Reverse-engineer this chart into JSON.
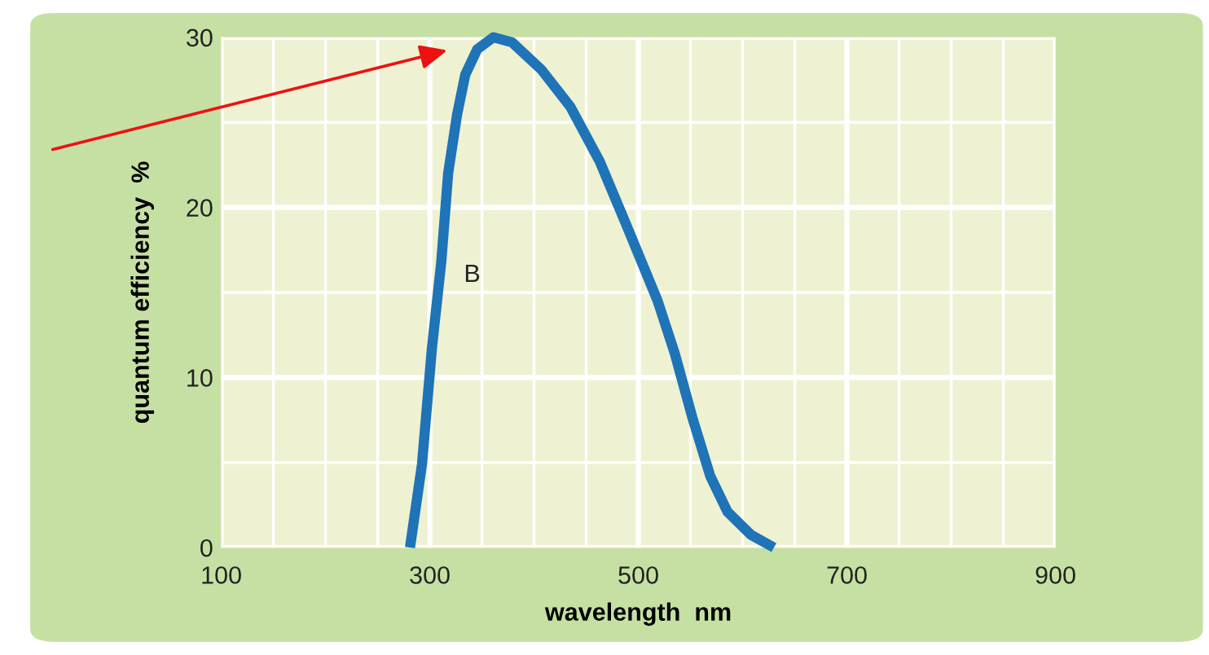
{
  "chart_data": {
    "type": "line",
    "xlabel": "wavelength  nm",
    "ylabel": "quantum efficiency  %",
    "x": [
      281,
      292.5,
      302,
      311,
      317.6,
      326,
      334,
      345.5,
      361,
      379,
      407,
      435,
      463,
      491,
      518.5,
      535,
      552,
      569,
      585.5,
      608,
      630
    ],
    "series": [
      {
        "name": "B",
        "color": "#1f73b7",
        "values": [
          0,
          4.9,
          11.7,
          16.8,
          22,
          25.4,
          27.8,
          29.3,
          30,
          29.7,
          28.1,
          25.9,
          22.7,
          18.6,
          14.5,
          11.4,
          7.6,
          4.2,
          2.1,
          0.75,
          0
        ]
      }
    ],
    "xlim": [
      100,
      900
    ],
    "xticks": [
      100,
      300,
      500,
      700,
      900
    ],
    "ylim": [
      0,
      30
    ],
    "yticks": [
      0,
      10,
      20,
      30
    ],
    "grid": true,
    "marker": "none",
    "line_style": "solid"
  }
}
